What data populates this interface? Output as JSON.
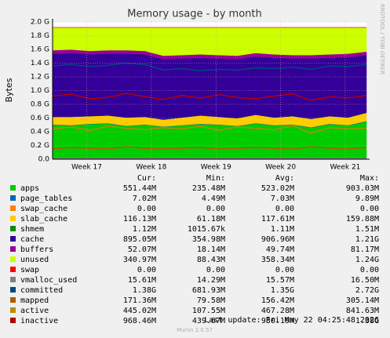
{
  "chart_data": {
    "type": "area",
    "title": "Memory usage - by month",
    "y_label": "Bytes",
    "side_note": "RRDTOOL / TOBI OETIKER",
    "footer": "Last update: Fri May 22 04:25:48 2026",
    "credit": "Munin 2.0.57",
    "stat_columns": [
      "Cur:",
      "Min:",
      "Avg:",
      "Max:"
    ],
    "grid": true,
    "x": [
      0,
      2,
      4,
      6,
      8,
      10,
      12,
      14,
      16,
      18,
      20,
      22,
      24,
      26,
      28,
      30,
      32,
      34
    ],
    "xlim": [
      0,
      34
    ],
    "xticks": [
      {
        "value": 3.7,
        "label": "Week 17"
      },
      {
        "value": 10.7,
        "label": "Week 18"
      },
      {
        "value": 17.7,
        "label": "Week 19"
      },
      {
        "value": 24.7,
        "label": "Week 20"
      },
      {
        "value": 31.7,
        "label": "Week 21"
      }
    ],
    "ylim": [
      0,
      2.0
    ],
    "yticks": [
      {
        "value": 0,
        "label": "0.0"
      },
      {
        "value": 0.2,
        "label": "0.2 G"
      },
      {
        "value": 0.4,
        "label": "0.4 G"
      },
      {
        "value": 0.6,
        "label": "0.6 G"
      },
      {
        "value": 0.8,
        "label": "0.8 G"
      },
      {
        "value": 1.0,
        "label": "1.0 G"
      },
      {
        "value": 1.2,
        "label": "1.2 G"
      },
      {
        "value": 1.4,
        "label": "1.4 G"
      },
      {
        "value": 1.6,
        "label": "1.6 G"
      },
      {
        "value": 1.8,
        "label": "1.8 G"
      },
      {
        "value": 2.0,
        "label": "2.0 G"
      }
    ],
    "series": [
      {
        "name": "apps",
        "color": "#00CC00",
        "stacked": true,
        "stats": [
          "551.44M",
          "235.48M",
          "523.02M",
          "903.03M"
        ],
        "values": [
          0.5,
          0.49,
          0.51,
          0.52,
          0.48,
          0.5,
          0.47,
          0.49,
          0.51,
          0.5,
          0.48,
          0.52,
          0.49,
          0.5,
          0.46,
          0.51,
          0.49,
          0.55
        ]
      },
      {
        "name": "page_tables",
        "color": "#0066B3",
        "stacked": true,
        "stats": [
          "7.02M",
          "4.49M",
          "7.03M",
          "9.89M"
        ],
        "values": [
          0.007,
          0.007,
          0.007,
          0.007,
          0.007,
          0.007,
          0.007,
          0.007,
          0.007,
          0.007,
          0.007,
          0.007,
          0.007,
          0.007,
          0.007,
          0.007,
          0.007,
          0.007
        ]
      },
      {
        "name": "swap_cache",
        "color": "#FF8000",
        "stacked": true,
        "stats": [
          "0.00",
          "0.00",
          "0.00",
          "0.00"
        ],
        "values": [
          0,
          0,
          0,
          0,
          0,
          0,
          0,
          0,
          0,
          0,
          0,
          0,
          0,
          0,
          0,
          0,
          0,
          0
        ]
      },
      {
        "name": "slab_cache",
        "color": "#FFCC00",
        "stacked": true,
        "stats": [
          "116.13M",
          "61.18M",
          "117.61M",
          "159.88M"
        ],
        "values": [
          0.11,
          0.12,
          0.11,
          0.11,
          0.12,
          0.11,
          0.1,
          0.11,
          0.12,
          0.11,
          0.11,
          0.12,
          0.11,
          0.12,
          0.12,
          0.11,
          0.11,
          0.12
        ]
      },
      {
        "name": "shmem",
        "color": "#008F00",
        "stacked": true,
        "stats": [
          "1.12M",
          "1015.67k",
          "1.11M",
          "1.51M"
        ],
        "values": [
          0.001,
          0.001,
          0.001,
          0.001,
          0.001,
          0.001,
          0.001,
          0.001,
          0.001,
          0.001,
          0.001,
          0.001,
          0.001,
          0.001,
          0.001,
          0.001,
          0.001,
          0.001
        ]
      },
      {
        "name": "cache",
        "color": "#330099",
        "stacked": true,
        "stats": [
          "895.05M",
          "354.98M",
          "906.96M",
          "1.21G"
        ],
        "values": [
          0.92,
          0.93,
          0.9,
          0.9,
          0.93,
          0.91,
          0.88,
          0.86,
          0.84,
          0.85,
          0.86,
          0.85,
          0.87,
          0.84,
          0.88,
          0.85,
          0.88,
          0.84
        ]
      },
      {
        "name": "buffers",
        "color": "#990099",
        "stacked": true,
        "stats": [
          "52.07M",
          "18.14M",
          "49.74M",
          "81.17M"
        ],
        "values": [
          0.05,
          0.05,
          0.05,
          0.05,
          0.05,
          0.05,
          0.05,
          0.05,
          0.05,
          0.05,
          0.05,
          0.05,
          0.05,
          0.05,
          0.05,
          0.05,
          0.05,
          0.05
        ]
      },
      {
        "name": "unused",
        "color": "#CCFF00",
        "stacked": true,
        "stats": [
          "340.97M",
          "88.43M",
          "358.34M",
          "1.24G"
        ],
        "values": [
          0.332,
          0.322,
          0.342,
          0.332,
          0.332,
          0.342,
          0.412,
          0.402,
          0.392,
          0.402,
          0.412,
          0.372,
          0.392,
          0.402,
          0.402,
          0.392,
          0.382,
          0.352
        ]
      },
      {
        "name": "swap",
        "color": "#FF0000",
        "stacked": true,
        "stats": [
          "0.00",
          "0.00",
          "0.00",
          "0.00"
        ],
        "values": [
          0,
          0,
          0,
          0,
          0,
          0,
          0,
          0,
          0,
          0,
          0,
          0,
          0,
          0,
          0,
          0,
          0,
          0
        ]
      },
      {
        "name": "vmalloc_used",
        "color": "#808080",
        "stacked": false,
        "stats": [
          "15.61M",
          "14.29M",
          "15.57M",
          "16.50M"
        ],
        "values": [
          0.0156,
          0.0156,
          0.0156,
          0.0156,
          0.0156,
          0.0156,
          0.0156,
          0.0156,
          0.0156,
          0.0156,
          0.0156,
          0.0156,
          0.0156,
          0.0156,
          0.0156,
          0.0156,
          0.0156,
          0.0156
        ]
      },
      {
        "name": "committed",
        "color": "#00487D",
        "stacked": false,
        "stats": [
          "1.38G",
          "681.93M",
          "1.35G",
          "2.72G"
        ],
        "values": [
          1.36,
          1.38,
          1.35,
          1.37,
          1.4,
          1.38,
          1.3,
          1.32,
          1.29,
          1.31,
          1.3,
          1.33,
          1.32,
          1.34,
          1.31,
          1.36,
          1.35,
          1.38
        ]
      },
      {
        "name": "mapped",
        "color": "#B35A00",
        "stacked": false,
        "stats": [
          "171.36M",
          "79.58M",
          "156.42M",
          "305.14M"
        ],
        "values": [
          0.15,
          0.17,
          0.16,
          0.15,
          0.18,
          0.16,
          0.15,
          0.16,
          0.17,
          0.15,
          0.16,
          0.17,
          0.16,
          0.15,
          0.18,
          0.16,
          0.15,
          0.17
        ]
      },
      {
        "name": "active",
        "color": "#B38F00",
        "stacked": false,
        "stats": [
          "445.02M",
          "107.55M",
          "467.28M",
          "841.63M"
        ],
        "values": [
          0.44,
          0.47,
          0.42,
          0.48,
          0.45,
          0.43,
          0.46,
          0.44,
          0.48,
          0.42,
          0.47,
          0.45,
          0.43,
          0.49,
          0.38,
          0.46,
          0.44,
          0.45
        ]
      },
      {
        "name": "inactive",
        "color": "#B30000",
        "stacked": false,
        "stats": [
          "968.46M",
          "439.67M",
          "930.19M",
          "1.38G"
        ],
        "values": [
          0.92,
          0.95,
          0.88,
          0.9,
          0.96,
          0.91,
          0.87,
          0.93,
          0.89,
          0.94,
          0.9,
          0.88,
          0.92,
          0.95,
          0.86,
          0.91,
          0.89,
          0.93
        ]
      }
    ]
  }
}
